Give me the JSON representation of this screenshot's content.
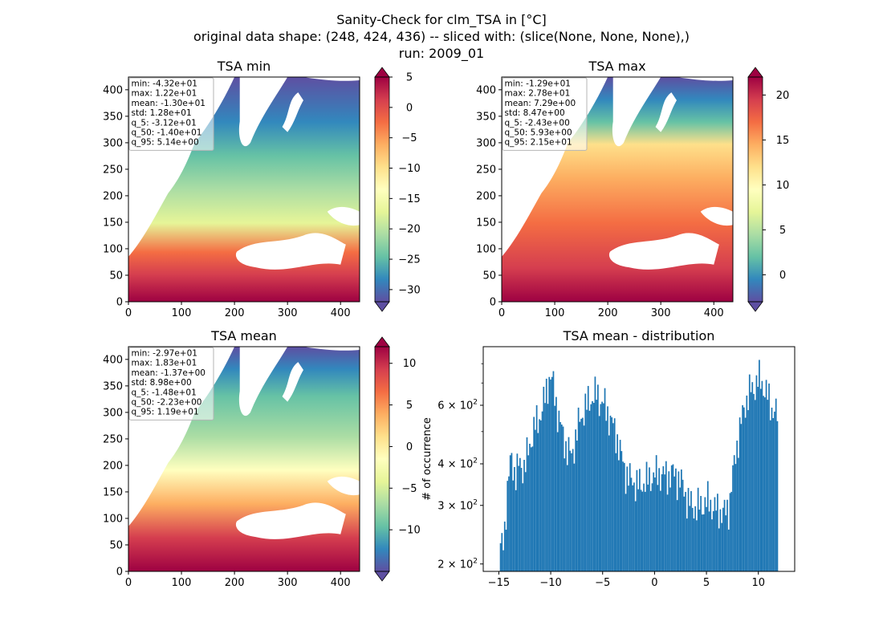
{
  "figure": {
    "suptitle_lines": [
      "Sanity-Check for clm_TSA in [°C]",
      "original data shape: (248, 424, 436) -- sliced with: (slice(None, None, None),)",
      "run: 2009_01"
    ]
  },
  "chart_data": [
    {
      "type": "heatmap",
      "title": "TSA min",
      "xlim": [
        0,
        436
      ],
      "ylim": [
        0,
        424
      ],
      "x_ticks": [
        0,
        100,
        200,
        300,
        400
      ],
      "y_ticks": [
        0,
        50,
        100,
        150,
        200,
        250,
        300,
        350,
        400
      ],
      "colormap": "Spectral_r",
      "colorbar": {
        "min": -32,
        "max": 5,
        "ticks": [
          5,
          0,
          -5,
          -10,
          -15,
          -20,
          -25,
          -30
        ],
        "extend": "both"
      },
      "stats": [
        "min: -4.32e+01",
        "max: 1.22e+01",
        "mean: -1.30e+01",
        "std: 1.28e+01",
        "q_5: -3.12e+01",
        "q_50: -1.40e+01",
        "q_95: 5.14e+00"
      ]
    },
    {
      "type": "heatmap",
      "title": "TSA max",
      "xlim": [
        0,
        436
      ],
      "ylim": [
        0,
        424
      ],
      "x_ticks": [
        0,
        100,
        200,
        300,
        400
      ],
      "y_ticks": [
        0,
        50,
        100,
        150,
        200,
        250,
        300,
        350,
        400
      ],
      "colormap": "Spectral_r",
      "colorbar": {
        "min": -3,
        "max": 22,
        "ticks": [
          20,
          15,
          10,
          5,
          0
        ],
        "extend": "both"
      },
      "stats": [
        "min: -1.29e+01",
        "max: 2.78e+01",
        "mean: 7.29e+00",
        "std: 8.47e+00",
        "q_5: -2.43e+00",
        "q_50: 5.93e+00",
        "q_95: 2.15e+01"
      ]
    },
    {
      "type": "heatmap",
      "title": "TSA mean",
      "xlim": [
        0,
        436
      ],
      "ylim": [
        0,
        424
      ],
      "x_ticks": [
        0,
        100,
        200,
        300,
        400
      ],
      "y_ticks": [
        0,
        50,
        100,
        150,
        200,
        250,
        300,
        350,
        400
      ],
      "colormap": "Spectral_r",
      "colorbar": {
        "min": -15,
        "max": 12,
        "ticks": [
          10,
          5,
          0,
          -5,
          -10
        ],
        "extend": "both"
      },
      "stats": [
        "min: -2.97e+01",
        "max: 1.83e+01",
        "mean: -1.37e+00",
        "std: 8.98e+00",
        "q_5: -1.48e+01",
        "q_50: -2.23e+00",
        "q_95: 1.19e+01"
      ]
    },
    {
      "type": "bar",
      "title": "TSA mean - distribution",
      "ylabel": "# of occurrence",
      "xlabel": "",
      "xlim": [
        -16.5,
        13.5
      ],
      "ylim": [
        190,
        900
      ],
      "yscale": "log",
      "x_ticks": [
        -15,
        -10,
        -5,
        0,
        5,
        10
      ],
      "y_ticks": [
        {
          "value": 200,
          "base": "2",
          "exp": "2"
        },
        {
          "value": 300,
          "base": "3",
          "exp": "2"
        },
        {
          "value": 400,
          "base": "4",
          "exp": "2"
        },
        {
          "value": 600,
          "base": "6",
          "exp": "2"
        }
      ],
      "color": "#1f77b4",
      "bin_range": [
        -14.9,
        11.9
      ],
      "bin_width": 0.134,
      "profile": [
        [
          -14.9,
          215
        ],
        [
          -14.5,
          240
        ],
        [
          -14.1,
          350
        ],
        [
          -13.8,
          420
        ],
        [
          -13.4,
          370
        ],
        [
          -13.0,
          400
        ],
        [
          -12.5,
          390
        ],
        [
          -12.0,
          460
        ],
        [
          -11.5,
          520
        ],
        [
          -11.0,
          560
        ],
        [
          -10.6,
          620
        ],
        [
          -10.1,
          740
        ],
        [
          -9.8,
          700
        ],
        [
          -9.4,
          590
        ],
        [
          -9.0,
          510
        ],
        [
          -8.5,
          450
        ],
        [
          -8.0,
          420
        ],
        [
          -7.6,
          480
        ],
        [
          -7.2,
          540
        ],
        [
          -6.8,
          580
        ],
        [
          -6.4,
          610
        ],
        [
          -6.0,
          635
        ],
        [
          -5.6,
          650
        ],
        [
          -5.2,
          620
        ],
        [
          -4.8,
          600
        ],
        [
          -4.4,
          560
        ],
        [
          -4.0,
          520
        ],
        [
          -3.6,
          480
        ],
        [
          -3.2,
          420
        ],
        [
          -2.8,
          380
        ],
        [
          -2.4,
          360
        ],
        [
          -2.0,
          355
        ],
        [
          -1.6,
          345
        ],
        [
          -1.2,
          350
        ],
        [
          -0.8,
          355
        ],
        [
          -0.4,
          365
        ],
        [
          0.0,
          370
        ],
        [
          0.4,
          375
        ],
        [
          0.8,
          372
        ],
        [
          1.2,
          368
        ],
        [
          1.6,
          375
        ],
        [
          2.0,
          370
        ],
        [
          2.4,
          360
        ],
        [
          2.8,
          340
        ],
        [
          3.2,
          310
        ],
        [
          3.6,
          300
        ],
        [
          4.0,
          295
        ],
        [
          4.4,
          300
        ],
        [
          4.8,
          305
        ],
        [
          5.2,
          310
        ],
        [
          5.6,
          298
        ],
        [
          6.0,
          292
        ],
        [
          6.4,
          288
        ],
        [
          6.8,
          285
        ],
        [
          7.2,
          300
        ],
        [
          7.6,
          380
        ],
        [
          8.0,
          470
        ],
        [
          8.4,
          540
        ],
        [
          8.8,
          620
        ],
        [
          9.2,
          660
        ],
        [
          9.6,
          680
        ],
        [
          10.0,
          720
        ],
        [
          10.4,
          700
        ],
        [
          10.8,
          650
        ],
        [
          11.2,
          600
        ],
        [
          11.6,
          570
        ],
        [
          11.9,
          555
        ]
      ]
    }
  ]
}
